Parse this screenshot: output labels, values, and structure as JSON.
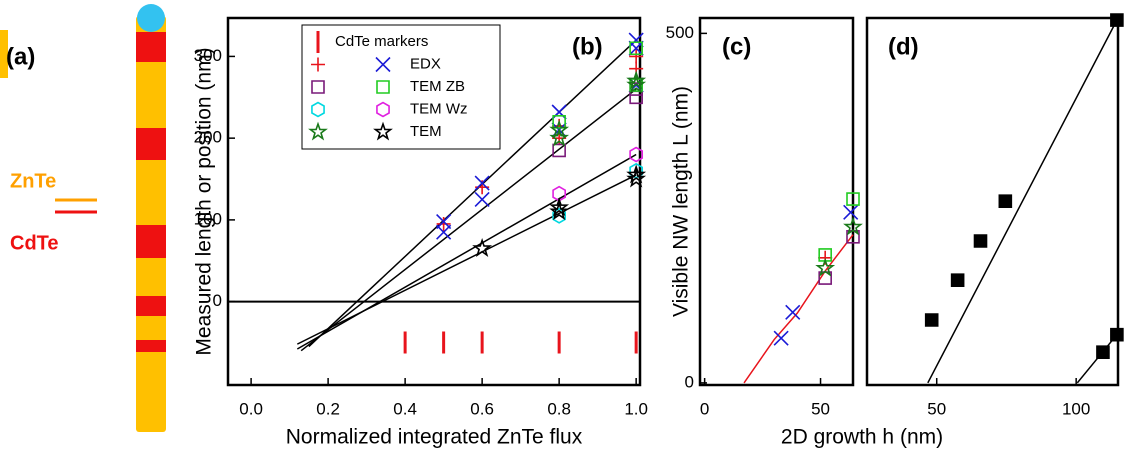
{
  "panel_a": {
    "label": "(a)",
    "top_label": "ZnTe",
    "bottom_label": "CdTe"
  },
  "chart_data": [
    {
      "type": "scatter",
      "panel_label": "(b)",
      "xlabel": "Normalized integrated ZnTe flux",
      "ylabel": "Measured length or position (nm)",
      "xlim": [
        -0.06,
        1.01
      ],
      "ylim": [
        -102,
        347
      ],
      "xticks": [
        {
          "value": 0,
          "label": "0.0"
        },
        0.2,
        0.4,
        0.6,
        0.8,
        {
          "value": 1,
          "label": "1.0"
        }
      ],
      "yticks": [
        0,
        100,
        200,
        300
      ],
      "hlines": [
        0
      ],
      "series": [
        {
          "name": "CdTe markers",
          "marker": "vline",
          "groups": [
            {
              "color": "#e8141c",
              "x": [
                0.4,
                0.5,
                0.6,
                0.8,
                1.0
              ],
              "values": [
                -50,
                -50,
                -50,
                -50,
                -50
              ]
            }
          ]
        },
        {
          "name": "EDX",
          "marker": "plus-x",
          "groups": [
            {
              "color": "#e8141c",
              "marker": "plus",
              "x": [
                0.5,
                0.6,
                0.8,
                0.8,
                1.0,
                1.0
              ],
              "values": [
                95,
                140,
                215,
                200,
                300,
                285
              ]
            },
            {
              "color": "#1a1ad6",
              "marker": "x",
              "x": [
                0.5,
                0.5,
                0.6,
                0.6,
                0.8,
                0.8,
                1.0,
                1.0,
                1.0
              ],
              "values": [
                98,
                85,
                145,
                125,
                232,
                210,
                320,
                310,
                265
              ]
            }
          ]
        },
        {
          "name": "TEM ZB",
          "marker": "square",
          "groups": [
            {
              "color": "#7a1a7a",
              "marker": "square",
              "x": [
                0.8,
                1.0,
                1.0
              ],
              "values": [
                185,
                260,
                250
              ]
            },
            {
              "color": "#22cc22",
              "marker": "square",
              "x": [
                0.8,
                1.0,
                1.0
              ],
              "values": [
                220,
                310,
                265
              ]
            }
          ]
        },
        {
          "name": "TEM Wz",
          "marker": "hex",
          "groups": [
            {
              "color": "#00d8e0",
              "marker": "hex",
              "x": [
                0.8,
                1.0
              ],
              "values": [
                105,
                160
              ]
            },
            {
              "color": "#e020e0",
              "marker": "hex",
              "x": [
                0.8,
                1.0
              ],
              "values": [
                132,
                180
              ]
            }
          ]
        },
        {
          "name": "TEM",
          "marker": "star",
          "groups": [
            {
              "color": "#1a7a1a",
              "marker": "star",
              "x": [
                0.8,
                0.8,
                1.0,
                1.0
              ],
              "values": [
                210,
                200,
                270,
                265
              ]
            },
            {
              "color": "#000000",
              "marker": "star",
              "x": [
                0.6,
                0.8,
                0.8,
                1.0,
                1.0
              ],
              "values": [
                65,
                115,
                110,
                155,
                150
              ]
            }
          ]
        }
      ],
      "lines": [
        {
          "color": "#000000",
          "x": [
            0.15,
            1.0
          ],
          "values": [
            -55,
            320
          ]
        },
        {
          "color": "#000000",
          "x": [
            0.13,
            1.0
          ],
          "values": [
            -60,
            260
          ]
        },
        {
          "color": "#000000",
          "x": [
            0.12,
            1.0
          ],
          "values": [
            -58,
            180
          ]
        },
        {
          "color": "#000000",
          "x": [
            0.12,
            1.0
          ],
          "values": [
            -52,
            155
          ]
        }
      ]
    },
    {
      "type": "scatter",
      "panel_label": "(c)",
      "xlabel": "2D growth h (nm)",
      "ylabel": "Visible NW length L (nm)",
      "xlim": [
        -2,
        64
      ],
      "ylim": [
        -3,
        522
      ],
      "xticks": [
        0,
        50
      ],
      "yticks": [
        0,
        500
      ],
      "series": [
        {
          "groups": [
            {
              "color": "#1a1ad6",
              "marker": "x",
              "x": [
                33,
                38,
                63
              ],
              "values": [
                64,
                101,
                244
              ]
            },
            {
              "color": "#e8141c",
              "marker": "plus",
              "x": [
                52
              ],
              "values": [
                179
              ]
            },
            {
              "color": "#7a1a7a",
              "marker": "square",
              "x": [
                52,
                64
              ],
              "values": [
                150,
                209
              ]
            },
            {
              "color": "#22cc22",
              "marker": "square",
              "x": [
                52,
                64
              ],
              "values": [
                183,
                263
              ]
            },
            {
              "color": "#1a7a1a",
              "marker": "star",
              "x": [
                52,
                64
              ],
              "values": [
                164,
                223
              ]
            }
          ]
        }
      ],
      "lines": [
        {
          "color": "#e8141c",
          "x": [
            17,
            30,
            40,
            52,
            64
          ],
          "values": [
            0,
            62,
            100,
            160,
            212
          ]
        }
      ]
    },
    {
      "type": "scatter",
      "panel_label": "(d)",
      "xlim": [
        25,
        115
      ],
      "ylim": [
        -3,
        522
      ],
      "xticks": [
        50,
        100
      ],
      "series": [
        {
          "groups": [
            {
              "color": "#000000",
              "marker": "fsquare",
              "x": [
                48.2,
                57.5,
                65.7,
                74.6,
                114.6,
                109.6,
                114.6
              ],
              "values": [
                90,
                147,
                203,
                260,
                519,
                44,
                69
              ]
            }
          ]
        }
      ],
      "lines": [
        {
          "color": "#000000",
          "x": [
            46.8,
            114.6
          ],
          "values": [
            0,
            519
          ]
        },
        {
          "color": "#000000",
          "x": [
            100.4,
            114.6
          ],
          "values": [
            0,
            69
          ]
        }
      ]
    }
  ]
}
